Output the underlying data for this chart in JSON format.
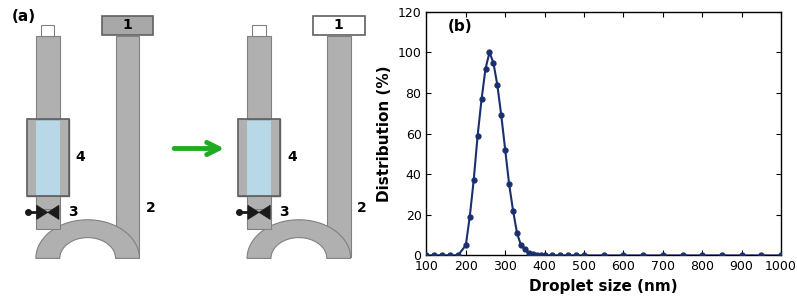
{
  "panel_b": {
    "x": [
      100,
      120,
      140,
      160,
      180,
      200,
      210,
      220,
      230,
      240,
      250,
      260,
      270,
      280,
      290,
      300,
      310,
      320,
      330,
      340,
      350,
      360,
      370,
      380,
      390,
      400,
      420,
      440,
      460,
      480,
      500,
      550,
      600,
      650,
      700,
      750,
      800,
      850,
      900,
      950,
      1000
    ],
    "y": [
      0,
      0,
      0,
      0,
      0,
      5,
      19,
      37,
      59,
      77,
      92,
      100,
      95,
      84,
      69,
      52,
      35,
      22,
      11,
      5,
      3,
      1,
      0.5,
      0.3,
      0.2,
      0.1,
      0,
      0,
      0,
      0,
      0,
      0,
      0,
      0,
      0,
      0,
      0,
      0,
      0,
      0,
      0
    ],
    "xlabel": "Droplet size (nm)",
    "ylabel": "Distribution (%)",
    "label_b": "(b)",
    "xlim": [
      100,
      1000
    ],
    "ylim": [
      0,
      120
    ],
    "yticks": [
      0,
      20,
      40,
      60,
      80,
      100,
      120
    ],
    "xticks": [
      100,
      200,
      300,
      400,
      500,
      600,
      700,
      800,
      900,
      1000
    ],
    "line_color": "#1a2f6e",
    "marker": "o",
    "markersize": 3.5,
    "linewidth": 1.5
  },
  "panel_a": {
    "tube_color": "#b0b0b0",
    "tube_edge": "#808080",
    "membrane_color": "#b8d8e8",
    "membrane_edge": "#606060",
    "box1_gray_color": "#a8a8a8",
    "box1_white_color": "#ffffff",
    "box_edge": "#606060",
    "valve_color": "#1a1a1a",
    "arrow_color": "#22aa22",
    "label_color": "#000000"
  }
}
